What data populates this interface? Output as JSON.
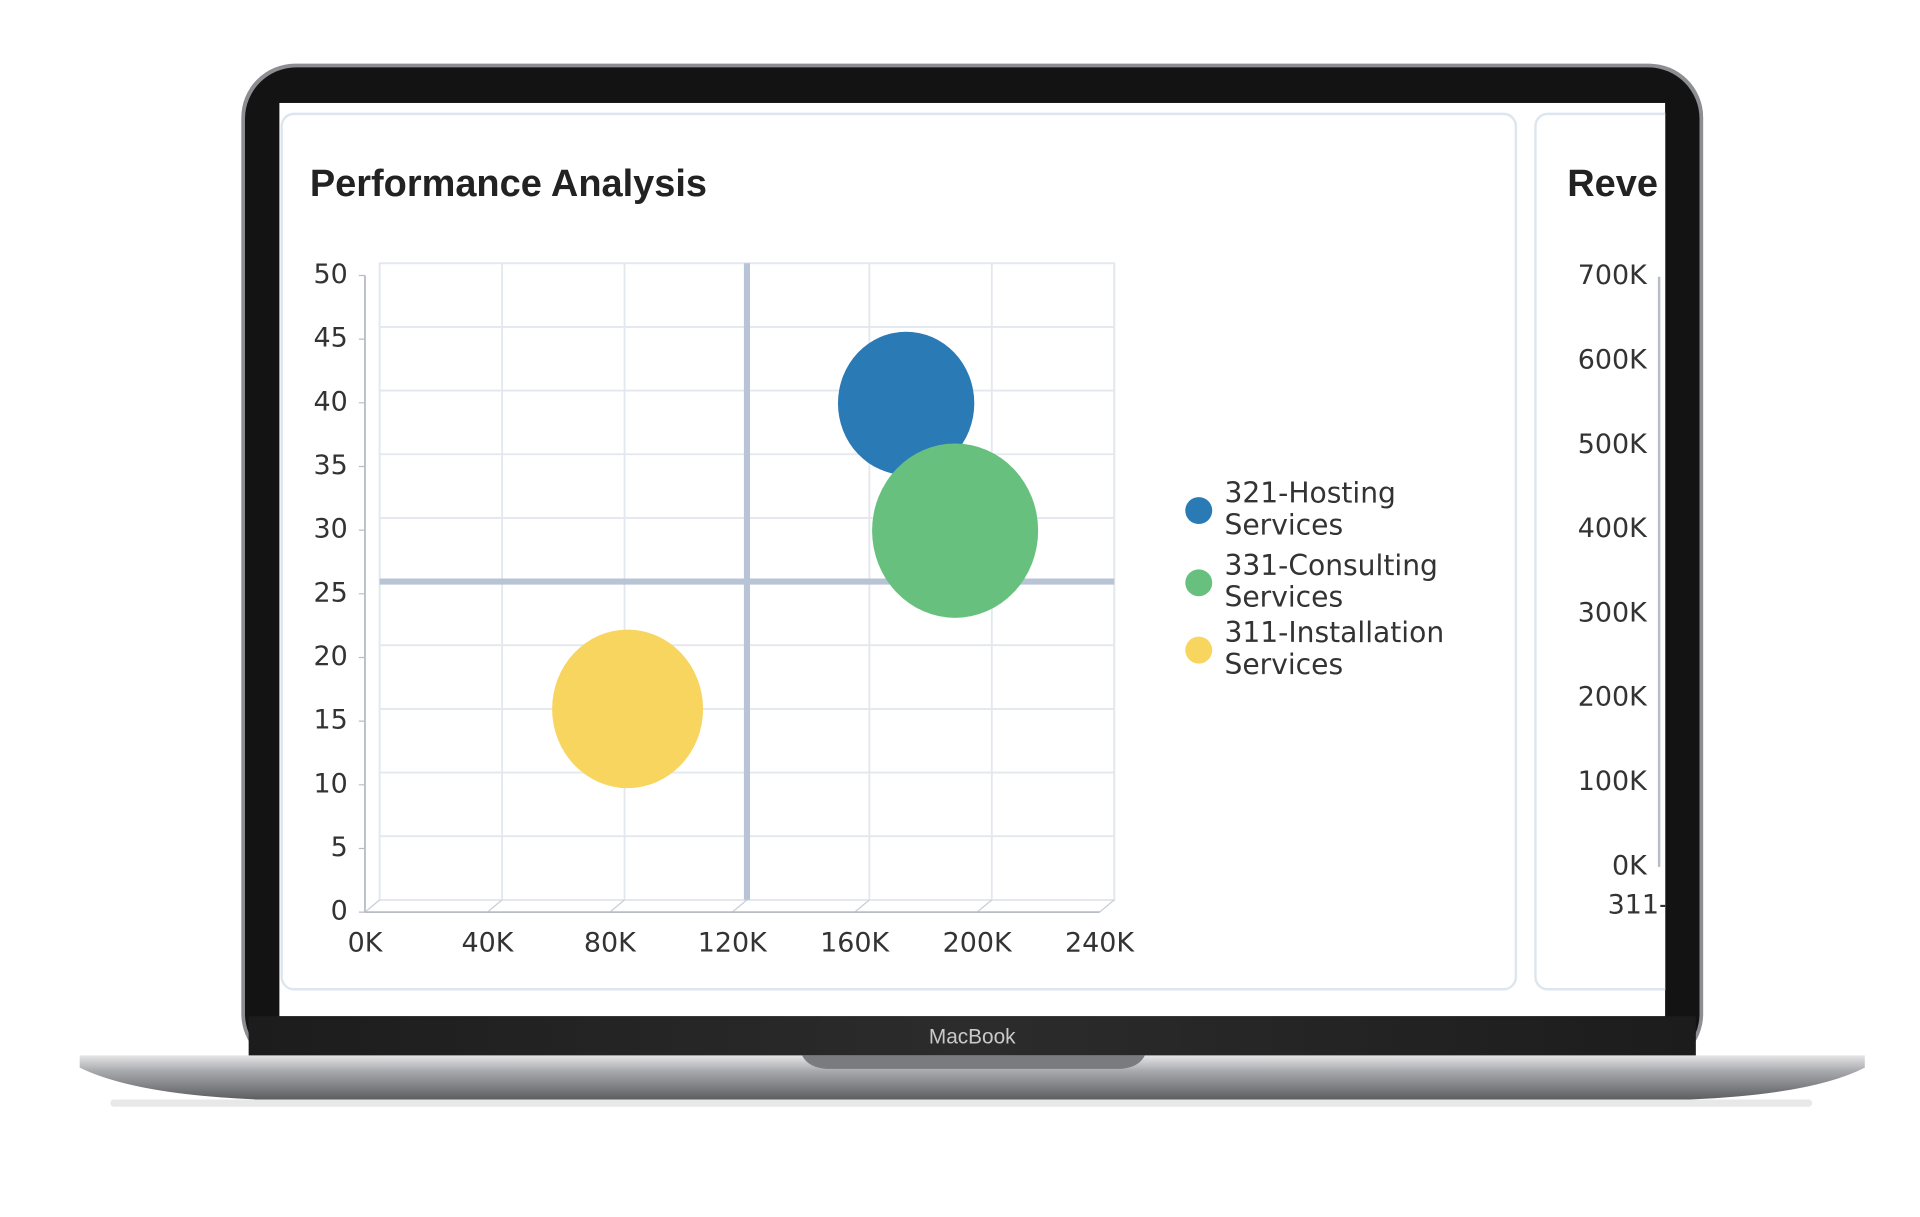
{
  "device": {
    "label": "MacBook"
  },
  "chart_data": [
    {
      "type": "bubble",
      "title": "Performance Analysis",
      "series": [
        {
          "name": "321-Hosting Services",
          "color": "#2a7ab5",
          "x": [
            172000
          ],
          "values": [
            39
          ],
          "sizes": [
            31
          ]
        },
        {
          "name": "331-Consulting Services",
          "color": "#68c07f",
          "x": [
            188000
          ],
          "values": [
            29
          ],
          "sizes": [
            46
          ]
        },
        {
          "name": "311-Installation Services",
          "color": "#f8d55e",
          "x": [
            81000
          ],
          "values": [
            15
          ],
          "sizes": [
            38
          ]
        }
      ],
      "xlim": [
        0,
        240000
      ],
      "xticks": [
        {
          "value": 0,
          "label": "0K"
        },
        {
          "value": 40000,
          "label": "40K"
        },
        {
          "value": 80000,
          "label": "80K"
        },
        {
          "value": 120000,
          "label": "120K"
        },
        {
          "value": 160000,
          "label": "160K"
        },
        {
          "value": 200000,
          "label": "200K"
        },
        {
          "value": 240000,
          "label": "240K"
        }
      ],
      "ylim": [
        0,
        50
      ],
      "yticks": [
        0,
        5,
        10,
        15,
        20,
        25,
        30,
        35,
        40,
        45,
        50
      ],
      "reference_lines": {
        "x": 120000,
        "y": 25
      },
      "grid": true,
      "legend": "right"
    },
    {
      "type": "bar",
      "title": "Reve",
      "categories": [
        "311-"
      ],
      "ylim": [
        0,
        700000
      ],
      "yticks": [
        {
          "value": 0,
          "label": "0K"
        },
        {
          "value": 100000,
          "label": "100K"
        },
        {
          "value": 200000,
          "label": "200K"
        },
        {
          "value": 300000,
          "label": "300K"
        },
        {
          "value": 400000,
          "label": "400K"
        },
        {
          "value": 500000,
          "label": "500K"
        },
        {
          "value": 600000,
          "label": "600K"
        },
        {
          "value": 700000,
          "label": "700K"
        }
      ]
    }
  ]
}
